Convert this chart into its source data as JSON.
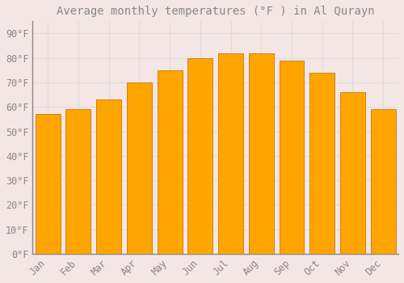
{
  "title": "Average monthly temperatures (°F ) in Al Qurayn",
  "months": [
    "Jan",
    "Feb",
    "Mar",
    "Apr",
    "May",
    "Jun",
    "Jul",
    "Aug",
    "Sep",
    "Oct",
    "Nov",
    "Dec"
  ],
  "values": [
    57,
    59,
    63,
    70,
    75,
    80,
    82,
    82,
    79,
    74,
    66,
    59
  ],
  "bar_color": "#FFA500",
  "bar_edge_color": "#C87800",
  "background_color": "#F5E6E6",
  "grid_color": "#DDDDDD",
  "text_color": "#888888",
  "yticks": [
    0,
    10,
    20,
    30,
    40,
    50,
    60,
    70,
    80,
    90
  ],
  "ylim": [
    0,
    95
  ],
  "title_fontsize": 10,
  "tick_fontsize": 8.5,
  "bar_width": 0.82
}
